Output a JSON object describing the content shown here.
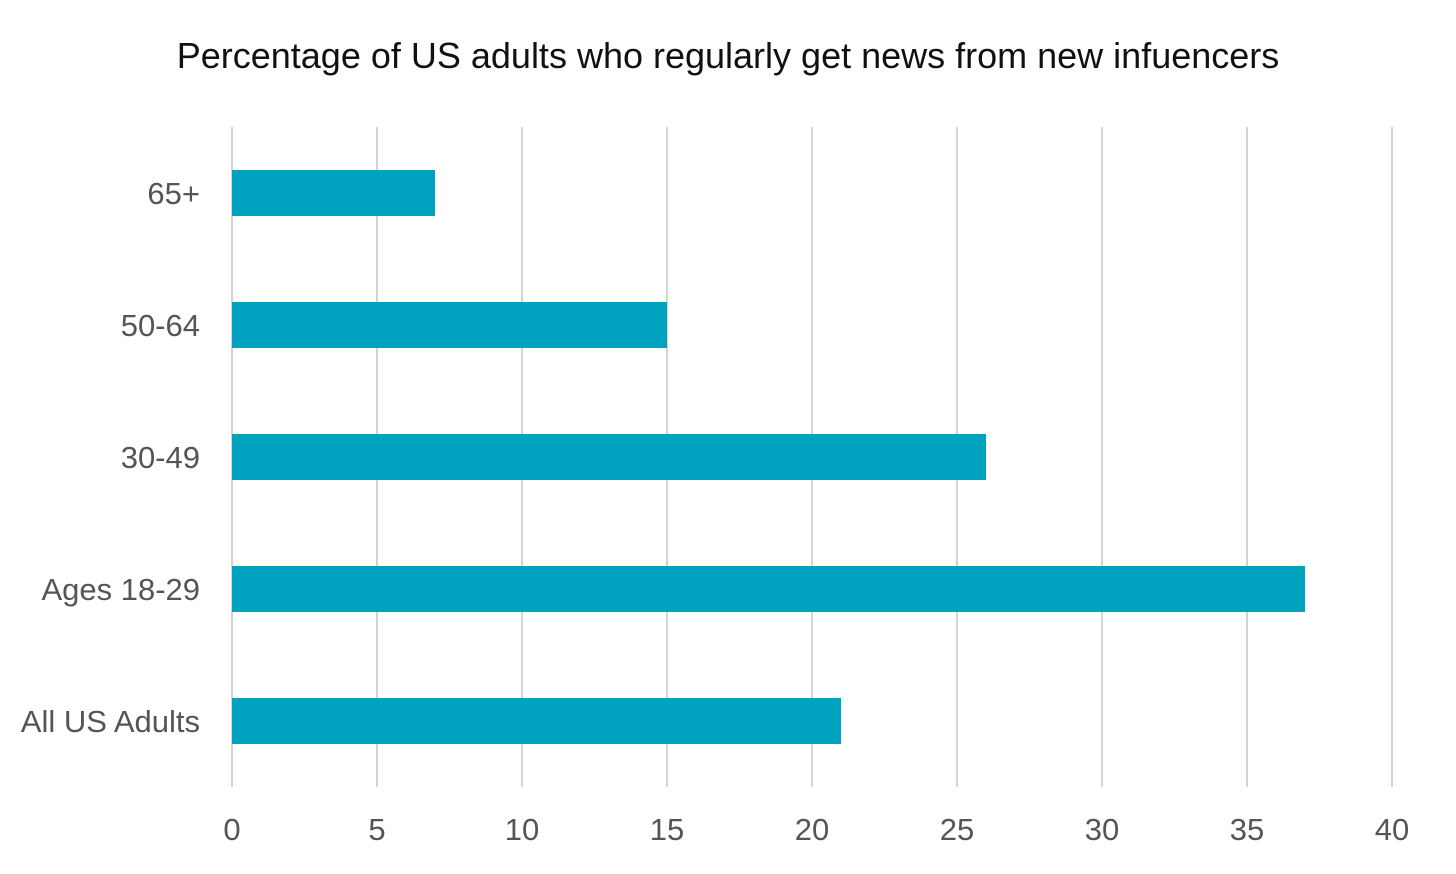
{
  "chart_data": {
    "type": "bar",
    "orientation": "horizontal",
    "title": "Percentage of US adults who regularly get news from new infuencers",
    "xlabel": "",
    "ylabel": "",
    "categories": [
      "65+",
      "50-64",
      "30-49",
      "Ages 18-29",
      "All US Adults"
    ],
    "values": [
      7,
      15,
      26,
      37,
      21
    ],
    "xlim": [
      0,
      40
    ],
    "xticks": [
      0,
      5,
      10,
      15,
      20,
      25,
      30,
      35,
      40
    ],
    "grid": "vertical",
    "legend": "none",
    "bar_color": "#00a3bf"
  }
}
